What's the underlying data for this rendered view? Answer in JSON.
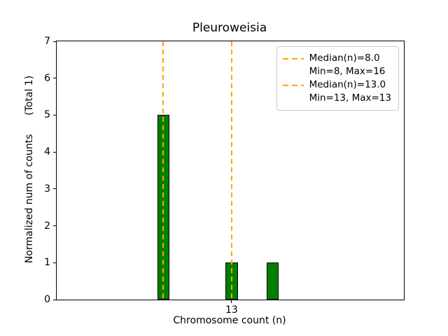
{
  "chart_data": {
    "type": "bar",
    "title": "Pleuroweisia",
    "xlabel": "Chromosome count (n)",
    "ylabel": "Normalized num of counts      (Total 1)",
    "xlim": [
      0.2,
      25.6
    ],
    "ylim": [
      0,
      7
    ],
    "yticks": [
      0,
      1,
      2,
      3,
      4,
      5,
      6,
      7
    ],
    "xticks": [
      13
    ],
    "grid": false,
    "bar_color": "#008000",
    "bar_edge_color": "#000000",
    "bar_width": 0.9,
    "bars": [
      {
        "x": 8,
        "height": 5
      },
      {
        "x": 13,
        "height": 1
      },
      {
        "x": 16,
        "height": 1
      }
    ],
    "vlines": [
      {
        "x": 8,
        "color": "#ffa500",
        "style": "dashed"
      },
      {
        "x": 13,
        "color": "#ffa500",
        "style": "dashed"
      }
    ],
    "legend": {
      "position": "top-right",
      "entries": [
        {
          "label": "Median(n)=8.0",
          "sublabel": "Min=8, Max=16",
          "color": "#ffa500",
          "line_style": "dashed"
        },
        {
          "label": "Median(n)=13.0",
          "sublabel": "Min=13, Max=13",
          "color": "#ffa500",
          "line_style": "dashed"
        }
      ]
    }
  }
}
